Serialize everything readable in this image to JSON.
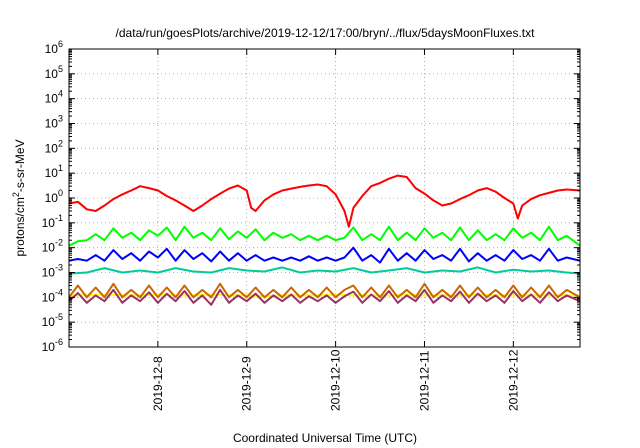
{
  "chart_data": {
    "type": "line",
    "title": "/data/run/goesPlots/archive/2019-12-12/17:00/bryn/../flux/5daysMoonFluxes.txt",
    "xlabel": "Coordinated Universal Time (UTC)",
    "ylabel": "protons/cm2-s-sr-MeV",
    "ylabel_parts": {
      "base": "protons/cm",
      "sup": "2",
      "rest": "-s-sr-MeV"
    },
    "xlim": [
      0,
      5.75
    ],
    "x_ticks": [
      {
        "x": 1,
        "label": "2019-12-8"
      },
      {
        "x": 2,
        "label": "2019-12-9"
      },
      {
        "x": 3,
        "label": "2019-12-10"
      },
      {
        "x": 4,
        "label": "2019-12-11"
      },
      {
        "x": 5,
        "label": "2019-12-12"
      }
    ],
    "y_scale": "log",
    "ylim": [
      1e-06,
      1000000.0
    ],
    "y_ticks": [
      {
        "exp": "6"
      },
      {
        "exp": "5"
      },
      {
        "exp": "4"
      },
      {
        "exp": "3"
      },
      {
        "exp": "2"
      },
      {
        "exp": "1"
      },
      {
        "exp": "0"
      },
      {
        "exp": "-1"
      },
      {
        "exp": "-2"
      },
      {
        "exp": "-3"
      },
      {
        "exp": "-4"
      },
      {
        "exp": "-5"
      },
      {
        "exp": "-6"
      }
    ],
    "y_tick_base": "10",
    "grid": true,
    "series": [
      {
        "color": "#00ff00",
        "x": [
          0,
          0.1,
          0.2,
          0.3,
          0.4,
          0.5,
          0.6,
          0.7,
          0.8,
          0.9,
          1.0,
          1.1,
          1.2,
          1.3,
          1.4,
          1.5,
          1.6,
          1.7,
          1.8,
          1.9,
          2.0,
          2.1,
          2.2,
          2.3,
          2.4,
          2.5,
          2.6,
          2.7,
          2.8,
          2.9,
          3.0,
          3.1,
          3.2,
          3.3,
          3.4,
          3.5,
          3.6,
          3.7,
          3.8,
          3.9,
          4.0,
          4.1,
          4.2,
          4.3,
          4.4,
          4.5,
          4.6,
          4.7,
          4.8,
          4.9,
          5.0,
          5.1,
          5.2,
          5.3,
          5.4,
          5.5,
          5.6,
          5.75
        ],
        "y": [
          0.012,
          0.018,
          0.02,
          0.035,
          0.02,
          0.06,
          0.025,
          0.04,
          0.02,
          0.05,
          0.03,
          0.065,
          0.02,
          0.07,
          0.025,
          0.04,
          0.02,
          0.06,
          0.022,
          0.045,
          0.025,
          0.055,
          0.02,
          0.04,
          0.025,
          0.035,
          0.02,
          0.03,
          0.02,
          0.03,
          0.02,
          0.025,
          0.065,
          0.02,
          0.035,
          0.02,
          0.07,
          0.02,
          0.04,
          0.02,
          0.06,
          0.025,
          0.04,
          0.02,
          0.065,
          0.02,
          0.05,
          0.02,
          0.035,
          0.02,
          0.06,
          0.025,
          0.04,
          0.02,
          0.07,
          0.02,
          0.03,
          0.012
        ]
      },
      {
        "color": "#00cc99",
        "x": [
          0,
          0.2,
          0.4,
          0.6,
          0.8,
          1.0,
          1.2,
          1.4,
          1.6,
          1.8,
          2.0,
          2.2,
          2.4,
          2.6,
          2.8,
          3.0,
          3.2,
          3.4,
          3.6,
          3.8,
          4.0,
          4.2,
          4.4,
          4.6,
          4.8,
          5.0,
          5.2,
          5.4,
          5.6,
          5.75
        ],
        "y": [
          0.0009,
          0.001,
          0.0015,
          0.001,
          0.0012,
          0.001,
          0.0015,
          0.0011,
          0.001,
          0.0015,
          0.0012,
          0.0011,
          0.0016,
          0.001,
          0.0012,
          0.0011,
          0.0015,
          0.001,
          0.0012,
          0.0015,
          0.001,
          0.0012,
          0.0011,
          0.0016,
          0.001,
          0.0013,
          0.0011,
          0.0012,
          0.001,
          0.0009
        ]
      },
      {
        "color": "#0000ff",
        "x": [
          0,
          0.1,
          0.2,
          0.3,
          0.4,
          0.5,
          0.6,
          0.7,
          0.8,
          0.9,
          1.0,
          1.1,
          1.2,
          1.3,
          1.4,
          1.5,
          1.6,
          1.7,
          1.8,
          1.9,
          2.0,
          2.1,
          2.2,
          2.3,
          2.4,
          2.5,
          2.6,
          2.7,
          2.8,
          2.9,
          3.0,
          3.1,
          3.2,
          3.3,
          3.4,
          3.5,
          3.6,
          3.7,
          3.8,
          3.9,
          4.0,
          4.1,
          4.2,
          4.3,
          4.4,
          4.5,
          4.6,
          4.7,
          4.8,
          4.9,
          5.0,
          5.1,
          5.2,
          5.3,
          5.4,
          5.5,
          5.6,
          5.75
        ],
        "y": [
          0.003,
          0.0035,
          0.003,
          0.005,
          0.003,
          0.008,
          0.0035,
          0.006,
          0.003,
          0.007,
          0.004,
          0.009,
          0.003,
          0.008,
          0.0035,
          0.006,
          0.0028,
          0.007,
          0.003,
          0.006,
          0.003,
          0.005,
          0.003,
          0.004,
          0.003,
          0.004,
          0.003,
          0.0045,
          0.003,
          0.004,
          0.003,
          0.004,
          0.01,
          0.003,
          0.005,
          0.0025,
          0.009,
          0.003,
          0.006,
          0.003,
          0.008,
          0.0035,
          0.005,
          0.003,
          0.009,
          0.0028,
          0.006,
          0.003,
          0.005,
          0.003,
          0.008,
          0.0035,
          0.005,
          0.003,
          0.009,
          0.003,
          0.004,
          0.003
        ]
      },
      {
        "color": "#ffff00",
        "x": [
          0,
          0.2,
          0.4,
          0.6,
          0.8,
          1.0,
          1.2,
          1.4,
          1.6,
          1.8,
          2.0,
          2.2,
          2.4,
          2.6,
          2.8,
          3.0,
          3.2,
          3.4,
          3.6,
          3.8,
          4.0,
          4.2,
          4.4,
          4.6,
          4.8,
          5.0,
          5.2,
          5.4,
          5.6,
          5.75
        ],
        "y": [
          0.00012,
          0.00012,
          0.00013,
          0.00012,
          0.00012,
          0.00013,
          0.00012,
          0.00012,
          0.00013,
          0.00012,
          0.00012,
          0.00011,
          0.00012,
          0.00012,
          0.00012,
          0.00013,
          0.00012,
          0.00012,
          0.00012,
          0.00013,
          0.00012,
          0.00012,
          0.00012,
          0.00013,
          0.00012,
          0.00012,
          0.00012,
          0.00012,
          0.00012,
          0.00012
        ]
      },
      {
        "color": "#cc6600",
        "x": [
          0,
          0.1,
          0.2,
          0.3,
          0.4,
          0.5,
          0.6,
          0.7,
          0.8,
          0.9,
          1.0,
          1.1,
          1.2,
          1.3,
          1.4,
          1.5,
          1.6,
          1.7,
          1.8,
          1.9,
          2.0,
          2.1,
          2.2,
          2.3,
          2.4,
          2.5,
          2.6,
          2.7,
          2.8,
          2.9,
          3.0,
          3.1,
          3.2,
          3.3,
          3.4,
          3.5,
          3.6,
          3.7,
          3.8,
          3.9,
          4.0,
          4.1,
          4.2,
          4.3,
          4.4,
          4.5,
          4.6,
          4.7,
          4.8,
          4.9,
          5.0,
          5.1,
          5.2,
          5.3,
          5.4,
          5.5,
          5.6,
          5.75
        ],
        "y": [
          0.0001,
          0.0003,
          0.0001,
          0.00025,
          0.0001,
          0.00035,
          0.0001,
          0.0002,
          0.0001,
          0.0003,
          0.0001,
          0.00025,
          0.0001,
          0.0003,
          0.0001,
          0.0002,
          0.0001,
          0.00035,
          0.0001,
          0.0002,
          0.0001,
          0.00025,
          0.0001,
          0.0002,
          0.0001,
          0.00025,
          0.0001,
          0.0002,
          0.0001,
          0.00025,
          0.0001,
          0.0002,
          0.0003,
          0.0001,
          0.00025,
          0.0001,
          0.0003,
          0.0001,
          0.0002,
          0.0001,
          0.00035,
          0.0001,
          0.0002,
          0.0001,
          0.0003,
          0.0001,
          0.00025,
          0.0001,
          0.0002,
          0.0001,
          0.0003,
          0.0001,
          0.00025,
          0.0001,
          0.0003,
          0.0001,
          0.0002,
          0.0001
        ]
      },
      {
        "color": "#993366",
        "x": [
          0,
          0.1,
          0.2,
          0.3,
          0.4,
          0.5,
          0.6,
          0.7,
          0.8,
          0.9,
          1.0,
          1.1,
          1.2,
          1.3,
          1.4,
          1.5,
          1.6,
          1.7,
          1.8,
          1.9,
          2.0,
          2.1,
          2.2,
          2.3,
          2.4,
          2.5,
          2.6,
          2.7,
          2.8,
          2.9,
          3.0,
          3.1,
          3.2,
          3.3,
          3.4,
          3.5,
          3.6,
          3.7,
          3.8,
          3.9,
          4.0,
          4.1,
          4.2,
          4.3,
          4.4,
          4.5,
          4.6,
          4.7,
          4.8,
          4.9,
          5.0,
          5.1,
          5.2,
          5.3,
          5.4,
          5.5,
          5.6,
          5.75
        ],
        "y": [
          7e-05,
          0.00015,
          6e-05,
          0.00012,
          7e-05,
          0.0002,
          6e-05,
          0.00012,
          7e-05,
          0.00016,
          6e-05,
          0.00014,
          7e-05,
          0.00018,
          6e-05,
          0.00012,
          5e-05,
          0.0002,
          6e-05,
          0.00012,
          7e-05,
          0.00014,
          6e-05,
          0.00012,
          7e-05,
          0.00013,
          6e-05,
          0.00011,
          7e-05,
          0.00012,
          6e-05,
          0.00011,
          0.00017,
          6e-05,
          0.00013,
          7e-05,
          0.00018,
          6e-05,
          0.00012,
          7e-05,
          0.0002,
          6e-05,
          0.00012,
          7e-05,
          0.00017,
          6e-05,
          0.00014,
          7e-05,
          0.00012,
          6e-05,
          0.00018,
          7e-05,
          0.00013,
          6e-05,
          0.00016,
          7e-05,
          0.00012,
          7e-05
        ]
      },
      {
        "color": "#ff0000",
        "x": [
          0,
          0.1,
          0.2,
          0.3,
          0.4,
          0.5,
          0.6,
          0.7,
          0.8,
          0.9,
          1.0,
          1.1,
          1.2,
          1.3,
          1.4,
          1.5,
          1.6,
          1.7,
          1.8,
          1.9,
          2.0,
          2.05,
          2.1,
          2.2,
          2.3,
          2.4,
          2.5,
          2.6,
          2.7,
          2.8,
          2.9,
          3.0,
          3.1,
          3.15,
          3.2,
          3.3,
          3.4,
          3.5,
          3.6,
          3.7,
          3.8,
          3.9,
          4.0,
          4.1,
          4.2,
          4.3,
          4.4,
          4.5,
          4.6,
          4.7,
          4.8,
          4.9,
          5.0,
          5.05,
          5.1,
          5.2,
          5.3,
          5.4,
          5.5,
          5.6,
          5.75
        ],
        "y": [
          0.6,
          0.7,
          0.35,
          0.3,
          0.5,
          0.9,
          1.4,
          2.0,
          3.0,
          2.5,
          2.0,
          1.2,
          0.8,
          0.5,
          0.3,
          0.5,
          0.9,
          1.5,
          2.4,
          3.2,
          2.0,
          0.4,
          0.3,
          0.8,
          1.4,
          2.0,
          2.4,
          2.8,
          3.2,
          3.5,
          3.0,
          1.4,
          0.3,
          0.07,
          0.4,
          1.2,
          3.0,
          4.0,
          6.0,
          8.0,
          7.0,
          2.5,
          1.5,
          0.8,
          0.5,
          0.6,
          0.9,
          1.3,
          2.0,
          2.5,
          1.8,
          1.0,
          0.6,
          0.15,
          0.5,
          0.9,
          1.3,
          1.6,
          2.0,
          2.2,
          2.0
        ]
      }
    ]
  }
}
